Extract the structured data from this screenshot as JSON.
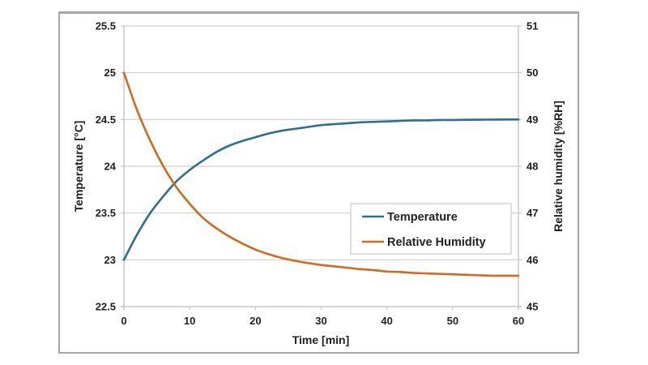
{
  "chart_data": {
    "type": "line",
    "title": "",
    "xlabel": "Time [min]",
    "ylabel": "Temperature [°C]",
    "y2label": "Relative humidity [%RH]",
    "xlim": [
      0,
      60
    ],
    "ylim": [
      22.5,
      25.5
    ],
    "y2lim": [
      45,
      51
    ],
    "xticks": [
      0,
      10,
      20,
      30,
      40,
      50,
      60
    ],
    "yticks": [
      22.5,
      23,
      23.5,
      24,
      24.5,
      25,
      25.5
    ],
    "y2ticks": [
      45,
      46,
      47,
      48,
      49,
      50,
      51
    ],
    "grid": "horizontal",
    "legend_position": "center-right",
    "x": [
      0,
      2,
      4,
      6,
      8,
      10,
      12,
      14,
      16,
      18,
      20,
      22,
      24,
      26,
      28,
      30,
      32,
      34,
      36,
      38,
      40,
      42,
      44,
      46,
      48,
      50,
      52,
      54,
      56,
      58,
      60
    ],
    "series": [
      {
        "name": "Temperature",
        "axis": "left",
        "color": "#2e6e8e",
        "values": [
          23.0,
          23.27,
          23.5,
          23.68,
          23.84,
          23.96,
          24.06,
          24.15,
          24.22,
          24.27,
          24.31,
          24.35,
          24.38,
          24.4,
          24.42,
          24.44,
          24.45,
          24.46,
          24.47,
          24.475,
          24.48,
          24.485,
          24.49,
          24.49,
          24.495,
          24.495,
          24.497,
          24.498,
          24.499,
          24.5,
          24.5
        ]
      },
      {
        "name": "Relative Humidity",
        "axis": "right",
        "color": "#d2691e",
        "values": [
          50.0,
          49.2,
          48.55,
          48.0,
          47.55,
          47.2,
          46.9,
          46.68,
          46.5,
          46.35,
          46.22,
          46.12,
          46.04,
          45.98,
          45.93,
          45.89,
          45.86,
          45.83,
          45.8,
          45.78,
          45.75,
          45.74,
          45.72,
          45.71,
          45.7,
          45.69,
          45.68,
          45.67,
          45.66,
          45.66,
          45.66
        ]
      }
    ]
  }
}
